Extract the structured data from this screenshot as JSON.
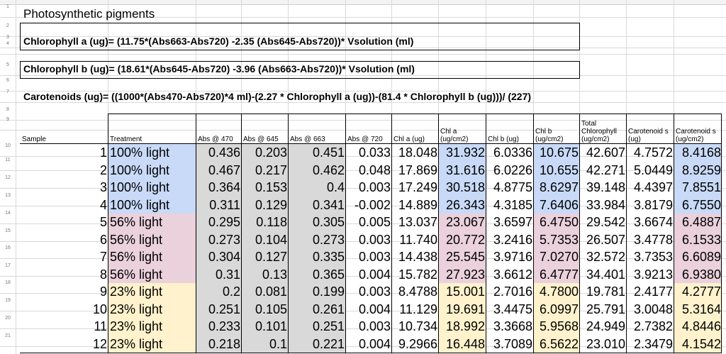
{
  "row_numbers": [
    "1",
    "2",
    "3",
    "4",
    "5",
    "6",
    "7",
    "8",
    "9",
    "10",
    "11",
    "12",
    "13",
    "14",
    "15",
    "16",
    "17",
    "18",
    "19",
    "20",
    "21"
  ],
  "title": "Photosynthetic pigments",
  "formulas": {
    "chl_a": "Chlorophyll a (ug)= (11.75*(Abs663-Abs720) -2.35 (Abs645-Abs720))* Vsolution (ml)",
    "chl_b": "Chlorophyll b (ug)= (18.61*(Abs645-Abs720) -3.96 (Abs663-Abs720))* Vsolution (ml)",
    "carotenoids": "Carotenoids (ug)= ((1000*(Abs470-Abs720)*4 ml)-(2.27 * Chlorophyll a (ug))-(81.4 * Chlorophyll b (ug)))/ (227)"
  },
  "headers": {
    "sample": "Sample",
    "treatment": "Treatment",
    "abs470": "Abs @ 470",
    "abs645": "Abs @ 645",
    "abs663": "Abs @ 663",
    "abs720": "Abs @ 720",
    "chla_ug": "Chl a (ug)",
    "chla_cm2": "Chl a (ug/cm2)",
    "chlb_ug": "Chl b (ug)",
    "chlb_cm2": "Chl b (ug/cm2)",
    "total_chl": "Total Chlorophyll (ug/cm2)",
    "car_ug": "Carotenoid s (ug)",
    "car_cm2": "Carotenoid s (ug/cm2)"
  },
  "rows": [
    {
      "sample": "1",
      "treatment": "100% light",
      "abs470": "0.436",
      "abs645": "0.203",
      "abs663": "0.451",
      "abs720": "0.033",
      "chla_ug": "18.048",
      "chla_cm2": "31.932",
      "chlb_ug": "6.0336",
      "chlb_cm2": "10.675",
      "total": "42.607",
      "car_ug": "4.7572",
      "car_cm2": "8.4168"
    },
    {
      "sample": "2",
      "treatment": "100% light",
      "abs470": "0.467",
      "abs645": "0.217",
      "abs663": "0.462",
      "abs720": "0.048",
      "chla_ug": "17.869",
      "chla_cm2": "31.616",
      "chlb_ug": "6.0226",
      "chlb_cm2": "10.655",
      "total": "42.271",
      "car_ug": "5.0449",
      "car_cm2": "8.9259"
    },
    {
      "sample": "3",
      "treatment": "100% light",
      "abs470": "0.364",
      "abs645": "0.153",
      "abs663": "0.4",
      "abs720": "0.003",
      "chla_ug": "17.249",
      "chla_cm2": "30.518",
      "chlb_ug": "4.8775",
      "chlb_cm2": "8.6297",
      "total": "39.148",
      "car_ug": "4.4397",
      "car_cm2": "7.8551"
    },
    {
      "sample": "4",
      "treatment": "100% light",
      "abs470": "0.311",
      "abs645": "0.129",
      "abs663": "0.341",
      "abs720": "-0.002",
      "chla_ug": "14.889",
      "chla_cm2": "26.343",
      "chlb_ug": "4.3185",
      "chlb_cm2": "7.6406",
      "total": "33.984",
      "car_ug": "3.8179",
      "car_cm2": "6.7550"
    },
    {
      "sample": "5",
      "treatment": "56% light",
      "abs470": "0.295",
      "abs645": "0.118",
      "abs663": "0.305",
      "abs720": "0.005",
      "chla_ug": "13.037",
      "chla_cm2": "23.067",
      "chlb_ug": "3.6597",
      "chlb_cm2": "6.4750",
      "total": "29.542",
      "car_ug": "3.6674",
      "car_cm2": "6.4887"
    },
    {
      "sample": "6",
      "treatment": "56% light",
      "abs470": "0.273",
      "abs645": "0.104",
      "abs663": "0.273",
      "abs720": "0.003",
      "chla_ug": "11.740",
      "chla_cm2": "20.772",
      "chlb_ug": "3.2416",
      "chlb_cm2": "5.7353",
      "total": "26.507",
      "car_ug": "3.4778",
      "car_cm2": "6.1533"
    },
    {
      "sample": "7",
      "treatment": "56% light",
      "abs470": "0.304",
      "abs645": "0.127",
      "abs663": "0.335",
      "abs720": "0.003",
      "chla_ug": "14.438",
      "chla_cm2": "25.545",
      "chlb_ug": "3.9716",
      "chlb_cm2": "7.0270",
      "total": "32.572",
      "car_ug": "3.7353",
      "car_cm2": "6.6089"
    },
    {
      "sample": "8",
      "treatment": "56% light",
      "abs470": "0.31",
      "abs645": "0.13",
      "abs663": "0.365",
      "abs720": "0.004",
      "chla_ug": "15.782",
      "chla_cm2": "27.923",
      "chlb_ug": "3.6612",
      "chlb_cm2": "6.4777",
      "total": "34.401",
      "car_ug": "3.9213",
      "car_cm2": "6.9380"
    },
    {
      "sample": "9",
      "treatment": "23% light",
      "abs470": "0.2",
      "abs645": "0.081",
      "abs663": "0.199",
      "abs720": "0.003",
      "chla_ug": "8.4788",
      "chla_cm2": "15.001",
      "chlb_ug": "2.7016",
      "chlb_cm2": "4.7800",
      "total": "19.781",
      "car_ug": "2.4177",
      "car_cm2": "4.2777"
    },
    {
      "sample": "10",
      "treatment": "23% light",
      "abs470": "0.251",
      "abs645": "0.105",
      "abs663": "0.261",
      "abs720": "0.004",
      "chla_ug": "11.129",
      "chla_cm2": "19.691",
      "chlb_ug": "3.4475",
      "chlb_cm2": "6.0997",
      "total": "25.791",
      "car_ug": "3.0048",
      "car_cm2": "5.3164"
    },
    {
      "sample": "11",
      "treatment": "23% light",
      "abs470": "0.233",
      "abs645": "0.101",
      "abs663": "0.251",
      "abs720": "0.003",
      "chla_ug": "10.734",
      "chla_cm2": "18.992",
      "chlb_ug": "3.3668",
      "chlb_cm2": "5.9568",
      "total": "24.949",
      "car_ug": "2.7382",
      "car_cm2": "4.8446"
    },
    {
      "sample": "12",
      "treatment": "23% light",
      "abs470": "0.218",
      "abs645": "0.1",
      "abs663": "0.221",
      "abs720": "0.004",
      "chla_ug": "9.2966",
      "chla_cm2": "16.448",
      "chlb_ug": "3.7089",
      "chlb_cm2": "6.5622",
      "total": "23.010",
      "car_ug": "2.3479",
      "car_cm2": "4.1542"
    }
  ],
  "colors": {
    "blue": "#c9daf8",
    "red": "#ead1dc",
    "yellow": "#fff2cc",
    "grey": "#d9d9d9"
  }
}
